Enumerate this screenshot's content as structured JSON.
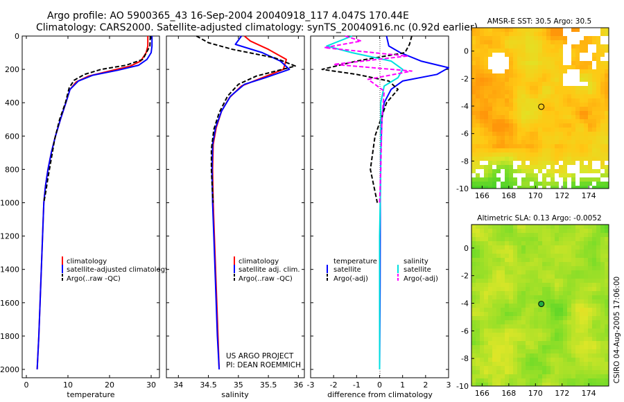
{
  "header": {
    "line1": "Argo profile: AO 5900365_43 16-Sep-2004 20040918_117 4.047S 170.44E",
    "line2": "Climatology: CARS2000. Satellite-adjusted climatology: synTS_20040916.nc (0.92d earlier)"
  },
  "credit": {
    "line1": "US ARGO PROJECT",
    "line2": "PI: DEAN ROEMMICH",
    "stamp": "CSIRO 04-Aug-2005 17:06:00"
  },
  "colors": {
    "climatology": "#ff0000",
    "satellite": "#0000ff",
    "argo": "#000000",
    "salinity": "#00e0e0",
    "salinity_argo": "#ff00ff"
  },
  "chart_data": [
    {
      "type": "line",
      "id": "temperature",
      "xlabel": "temperature",
      "xlim": [
        -1,
        32
      ],
      "ylim": [
        2050,
        0
      ],
      "xticks": [
        "0",
        "10",
        "20",
        "30"
      ],
      "xtick_values": [
        0,
        10,
        20,
        30
      ],
      "yticks": [
        "0",
        "200",
        "400",
        "600",
        "800",
        "1000",
        "1200",
        "1400",
        "1600",
        "1800",
        "2000"
      ],
      "ytick_values": [
        0,
        200,
        400,
        600,
        800,
        1000,
        1200,
        1400,
        1600,
        1800,
        2000
      ],
      "legend": [
        "climatology",
        "satellite-adjusted climatology",
        "Argo(..raw -QC)"
      ],
      "series": [
        {
          "name": "climatology",
          "color_key": "climatology",
          "dash": false,
          "points": [
            [
              29.2,
              0
            ],
            [
              29.2,
              60
            ],
            [
              28.8,
              100
            ],
            [
              27.5,
              150
            ],
            [
              25,
              180
            ],
            [
              20,
              210
            ],
            [
              15,
              240
            ],
            [
              12,
              275
            ],
            [
              10.5,
              320
            ],
            [
              9.5,
              400
            ],
            [
              8.2,
              500
            ],
            [
              7,
              600
            ],
            [
              6,
              700
            ],
            [
              5.2,
              800
            ],
            [
              4.6,
              900
            ],
            [
              4.2,
              1000
            ],
            [
              3.9,
              1200
            ],
            [
              3.6,
              1400
            ],
            [
              3.3,
              1600
            ],
            [
              3.0,
              1800
            ],
            [
              2.6,
              2000
            ]
          ]
        },
        {
          "name": "satellite-adjusted climatology",
          "color_key": "satellite",
          "dash": false,
          "points": [
            [
              30.2,
              0
            ],
            [
              30.2,
              60
            ],
            [
              30,
              100
            ],
            [
              29,
              140
            ],
            [
              27,
              175
            ],
            [
              22,
              205
            ],
            [
              16,
              235
            ],
            [
              12.5,
              270
            ],
            [
              10.5,
              320
            ],
            [
              9.5,
              400
            ],
            [
              8.2,
              500
            ],
            [
              7,
              600
            ],
            [
              6,
              700
            ],
            [
              5.2,
              800
            ],
            [
              4.6,
              900
            ],
            [
              4.2,
              1000
            ],
            [
              3.9,
              1200
            ],
            [
              3.6,
              1400
            ],
            [
              3.3,
              1600
            ],
            [
              3.0,
              1800
            ],
            [
              2.6,
              2000
            ]
          ]
        },
        {
          "name": "Argo(..raw -QC)",
          "color_key": "argo",
          "dash": true,
          "points": [
            [
              29.8,
              0
            ],
            [
              29.7,
              60
            ],
            [
              28,
              140
            ],
            [
              24,
              175
            ],
            [
              18,
              200
            ],
            [
              14,
              230
            ],
            [
              11.5,
              265
            ],
            [
              10.3,
              310
            ],
            [
              9.4,
              400
            ],
            [
              8,
              500
            ],
            [
              6.8,
              620
            ],
            [
              5.9,
              750
            ],
            [
              5.2,
              850
            ],
            [
              4.7,
              930
            ],
            [
              4.2,
              1000
            ]
          ]
        }
      ]
    },
    {
      "type": "line",
      "id": "salinity",
      "xlabel": "salinity",
      "xlim": [
        33.8,
        36.1
      ],
      "ylim": [
        2050,
        0
      ],
      "xticks": [
        "34",
        "34.5",
        "35",
        "35.5",
        "36"
      ],
      "xtick_values": [
        34,
        34.5,
        35,
        35.5,
        36
      ],
      "legend": [
        "climatology",
        "satellite adj. clim.",
        "Argo(..raw -QC)"
      ],
      "series": [
        {
          "name": "climatology",
          "color_key": "climatology",
          "dash": false,
          "points": [
            [
              35.1,
              0
            ],
            [
              35.2,
              30
            ],
            [
              35.5,
              80
            ],
            [
              35.8,
              140
            ],
            [
              35.75,
              200
            ],
            [
              35.4,
              250
            ],
            [
              35.05,
              300
            ],
            [
              34.85,
              370
            ],
            [
              34.72,
              450
            ],
            [
              34.63,
              550
            ],
            [
              34.58,
              650
            ],
            [
              34.57,
              800
            ],
            [
              34.58,
              1000
            ],
            [
              34.6,
              1200
            ],
            [
              34.62,
              1400
            ],
            [
              34.64,
              1600
            ],
            [
              34.66,
              1800
            ],
            [
              34.68,
              2000
            ]
          ]
        },
        {
          "name": "satellite adj. clim.",
          "color_key": "satellite",
          "dash": false,
          "points": [
            [
              35.05,
              0
            ],
            [
              34.95,
              50
            ],
            [
              35.4,
              100
            ],
            [
              35.7,
              150
            ],
            [
              35.85,
              200
            ],
            [
              35.45,
              250
            ],
            [
              35.1,
              290
            ],
            [
              34.87,
              360
            ],
            [
              34.72,
              450
            ],
            [
              34.62,
              550
            ],
            [
              34.57,
              650
            ],
            [
              34.56,
              800
            ],
            [
              34.57,
              1000
            ],
            [
              34.59,
              1200
            ],
            [
              34.61,
              1400
            ],
            [
              34.63,
              1600
            ],
            [
              34.65,
              1800
            ],
            [
              34.68,
              2000
            ]
          ]
        },
        {
          "name": "Argo(..raw -QC)",
          "color_key": "argo",
          "dash": true,
          "points": [
            [
              34.3,
              0
            ],
            [
              34.5,
              40
            ],
            [
              34.9,
              80
            ],
            [
              35.6,
              130
            ],
            [
              35.95,
              180
            ],
            [
              35.3,
              240
            ],
            [
              35.0,
              290
            ],
            [
              34.82,
              360
            ],
            [
              34.68,
              460
            ],
            [
              34.59,
              560
            ],
            [
              34.55,
              680
            ],
            [
              34.55,
              800
            ],
            [
              34.57,
              950
            ],
            [
              34.58,
              1000
            ]
          ]
        }
      ]
    },
    {
      "type": "line",
      "id": "difference",
      "xlabel": "difference from climatology",
      "xlim": [
        -3,
        3
      ],
      "ylim": [
        2050,
        0
      ],
      "xticks": [
        "-3",
        "-2",
        "-1",
        "0",
        "1",
        "2",
        "3"
      ],
      "xtick_values": [
        -3,
        -2,
        -1,
        0,
        1,
        2,
        3
      ],
      "legend_temperature": [
        "temperature",
        "satellite",
        "Argo(-adj)"
      ],
      "legend_salinity": [
        "salinity",
        "satellite",
        "Argo(-adj)"
      ],
      "series": [
        {
          "name": "temperature satellite",
          "color_key": "satellite",
          "dash": false,
          "points": [
            [
              0.3,
              0
            ],
            [
              0.4,
              60
            ],
            [
              0.9,
              100
            ],
            [
              1.8,
              150
            ],
            [
              3.0,
              190
            ],
            [
              2.5,
              230
            ],
            [
              1.0,
              270
            ],
            [
              0.5,
              320
            ],
            [
              0.2,
              400
            ],
            [
              0.1,
              500
            ],
            [
              0.05,
              700
            ],
            [
              0.03,
              1000
            ],
            [
              0.02,
              1500
            ],
            [
              0.0,
              2000
            ]
          ]
        },
        {
          "name": "temperature Argo(-adj)",
          "color_key": "argo",
          "dash": true,
          "points": [
            [
              1.4,
              0
            ],
            [
              1.3,
              50
            ],
            [
              1.1,
              100
            ],
            [
              -1.0,
              150
            ],
            [
              -2.5,
              200
            ],
            [
              -1.0,
              230
            ],
            [
              0.4,
              270
            ],
            [
              0.8,
              320
            ],
            [
              0.3,
              400
            ],
            [
              -0.2,
              600
            ],
            [
              -0.4,
              800
            ],
            [
              -0.1,
              1000
            ]
          ]
        },
        {
          "name": "salinity satellite",
          "color_key": "salinity",
          "dash": false,
          "points": [
            [
              -1.2,
              0
            ],
            [
              -2.3,
              60
            ],
            [
              -1.2,
              100
            ],
            [
              0.5,
              150
            ],
            [
              1.0,
              200
            ],
            [
              0.8,
              250
            ],
            [
              0.2,
              300
            ],
            [
              0.05,
              400
            ],
            [
              0.05,
              800
            ],
            [
              0.0,
              1200
            ],
            [
              0.0,
              1600
            ],
            [
              0.0,
              2000
            ]
          ]
        },
        {
          "name": "salinity Argo(-adj)",
          "color_key": "salinity_argo",
          "dash": true,
          "points": [
            [
              -1.5,
              0
            ],
            [
              -0.8,
              30
            ],
            [
              -2.4,
              70
            ],
            [
              1.2,
              120
            ],
            [
              -2.0,
              170
            ],
            [
              1.4,
              210
            ],
            [
              -0.5,
              260
            ],
            [
              0.2,
              330
            ],
            [
              0.1,
              500
            ],
            [
              0.05,
              800
            ],
            [
              0.0,
              1000
            ]
          ]
        }
      ]
    },
    {
      "type": "heatmap",
      "id": "sst-map",
      "title": "AMSR-E SST: 30.5 Argo: 30.5",
      "xticks": [
        "166",
        "168",
        "170",
        "172",
        "174"
      ],
      "xtick_values": [
        166,
        168,
        170,
        172,
        174
      ],
      "yticks": [
        "0",
        "-2",
        "-4",
        "-6",
        "-8",
        "-10"
      ],
      "ytick_values": [
        0,
        -2,
        -4,
        -6,
        -8,
        -10
      ],
      "xlim": [
        165.2,
        175.5
      ],
      "ylim": [
        -10,
        1.7
      ],
      "argo_position": [
        170.44,
        -4.047
      ]
    },
    {
      "type": "heatmap",
      "id": "sla-map",
      "title": "Altimetric SLA: 0.13 Argo: -0.0052",
      "xticks": [
        "166",
        "168",
        "170",
        "172",
        "174"
      ],
      "xtick_values": [
        166,
        168,
        170,
        172,
        174
      ],
      "yticks": [
        "0",
        "-2",
        "-4",
        "-6",
        "-8",
        "-10"
      ],
      "ytick_values": [
        0,
        -2,
        -4,
        -6,
        -8,
        -10
      ],
      "xlim": [
        165.2,
        175.5
      ],
      "ylim": [
        -10,
        1.7
      ],
      "argo_position": [
        170.44,
        -4.047
      ]
    }
  ]
}
